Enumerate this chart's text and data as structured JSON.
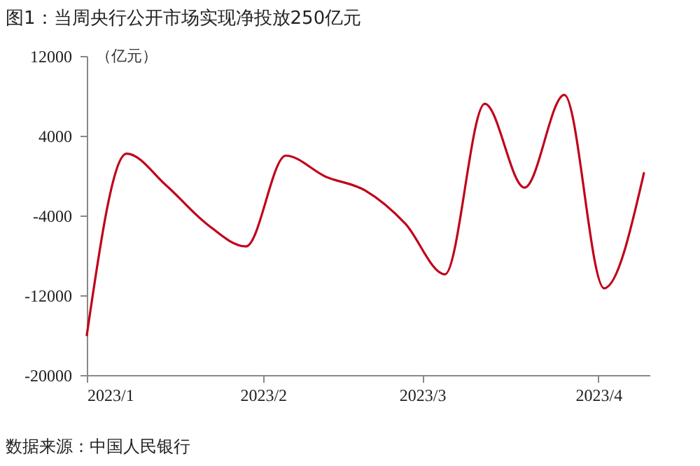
{
  "chart_data": {
    "type": "line",
    "title": "图1：当周央行公开市场实现净投放250亿元",
    "ylabel": "（亿元）",
    "x": [
      "2023-01-01",
      "2023-01-08",
      "2023-01-15",
      "2023-01-22",
      "2023-01-29",
      "2023-02-05",
      "2023-02-12",
      "2023-02-19",
      "2023-02-26",
      "2023-03-05",
      "2023-03-12",
      "2023-03-19",
      "2023-03-26",
      "2023-04-02",
      "2023-04-09"
    ],
    "series": [
      {
        "color": "#c0001a",
        "values": [
          -16000,
          2200,
          -1000,
          -4800,
          -7100,
          2000,
          -100,
          -1500,
          -4800,
          -9900,
          7200,
          -1200,
          8100,
          -11300,
          250
        ]
      }
    ],
    "xlim": [
      "2023-01-01",
      "2023-04-10"
    ],
    "xticks": [
      {
        "value": "2023-01-01",
        "label": "2023/1"
      },
      {
        "value": "2023-02-01",
        "label": "2023/2"
      },
      {
        "value": "2023-03-01",
        "label": "2023/3"
      },
      {
        "value": "2023-04-01",
        "label": "2023/4"
      }
    ],
    "ylim": [
      -20000,
      12000
    ],
    "yticks": [
      -20000,
      -12000,
      -4000,
      4000,
      12000
    ],
    "grid": false,
    "legend": false,
    "line_style": "solid",
    "marker": "none",
    "annotations": [
      "数据来源：中国人民银行"
    ]
  }
}
